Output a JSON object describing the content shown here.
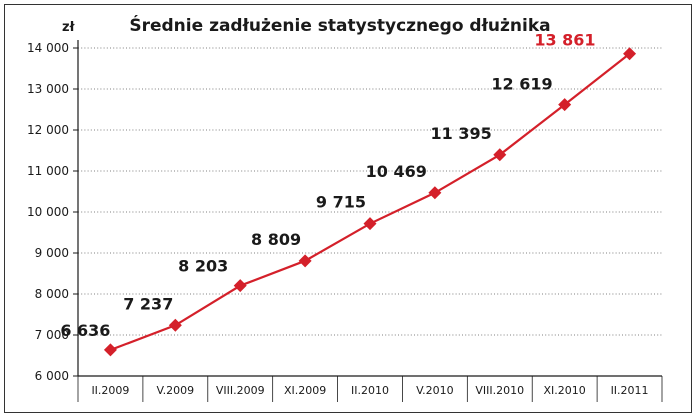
{
  "chart_data": {
    "type": "line",
    "title": "Średnie zadłużenie statystycznego dłużnika",
    "unit_label": "zł",
    "categories": [
      "II.2009",
      "V.2009",
      "VIII.2009",
      "XI.2009",
      "II.2010",
      "V.2010",
      "VIII.2010",
      "XI.2010",
      "II.2011"
    ],
    "values": [
      6636,
      7237,
      8203,
      8809,
      9715,
      10469,
      11395,
      12619,
      13861
    ],
    "value_labels": [
      "6 636",
      "7 237",
      "8 203",
      "8 809",
      "9 715",
      "10 469",
      "11 395",
      "12 619",
      "13 861"
    ],
    "yticks": [
      6000,
      7000,
      8000,
      9000,
      10000,
      11000,
      12000,
      13000,
      14000
    ],
    "ytick_labels": [
      "6 000",
      "7 000",
      "8 000",
      "9 000",
      "10 000",
      "11 000",
      "12 000",
      "13 000",
      "14 000"
    ],
    "ylim": [
      6000,
      14000
    ],
    "grid": true,
    "line_color": "#d4202a",
    "last_label_color": "#d4202a",
    "label_color": "#1a1a1a",
    "grid_color": "#000000"
  }
}
